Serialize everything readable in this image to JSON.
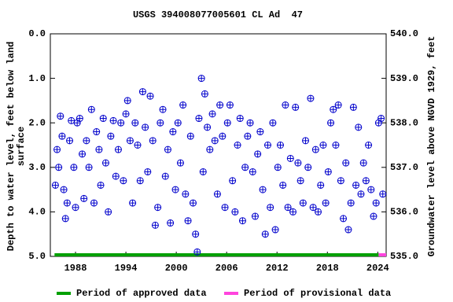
{
  "chart_data": {
    "type": "scatter",
    "title": "USGS 394008077005601 CL Ad  47",
    "ylabel": [
      "Depth to water level, feet below land",
      "surface"
    ],
    "y2label": "Groundwater level above NGVD 1929, feet",
    "xlim": [
      1985,
      2025
    ],
    "xticks": [
      1988,
      1994,
      2000,
      2006,
      2012,
      2018,
      2024
    ],
    "ylim": [
      0,
      5
    ],
    "invert_y": true,
    "yticks": [
      {
        "value": 0,
        "label": "0.0"
      },
      {
        "value": 1,
        "label": "1.0"
      },
      {
        "value": 2,
        "label": "2.0"
      },
      {
        "value": 3,
        "label": "3.0"
      },
      {
        "value": 4,
        "label": "4.0"
      },
      {
        "value": 5,
        "label": "5.0"
      }
    ],
    "y2lim": [
      535,
      540
    ],
    "y2ticks": [
      {
        "value": 535,
        "label": "535.0"
      },
      {
        "value": 536,
        "label": "536.0"
      },
      {
        "value": 537,
        "label": "537.0"
      },
      {
        "value": 538,
        "label": "538.0"
      },
      {
        "value": 539,
        "label": "539.0"
      },
      {
        "value": 540,
        "label": "540.0"
      }
    ],
    "series": [
      {
        "color": "#0000cc",
        "x": [
          1985.6,
          1985.8,
          1986.0,
          1986.2,
          1986.4,
          1986.6,
          1986.8,
          1987.0,
          1987.3,
          1987.5,
          1987.8,
          1988.0,
          1988.2,
          1988.5,
          1988.8,
          1989.0,
          1989.3,
          1989.6,
          1989.9,
          1990.2,
          1990.5,
          1990.8,
          1991.0,
          1991.3,
          1991.6,
          1991.9,
          1992.2,
          1992.5,
          1992.8,
          1993.1,
          1993.4,
          1993.7,
          1994.0,
          1994.2,
          1994.5,
          1994.8,
          1995.1,
          1995.4,
          1995.7,
          1996.0,
          1996.3,
          1996.6,
          1996.9,
          1997.2,
          1997.5,
          1997.8,
          1998.1,
          1998.4,
          1998.7,
          1999.0,
          1999.3,
          1999.6,
          1999.9,
          2000.2,
          2000.5,
          2000.8,
          2001.1,
          2001.4,
          2001.7,
          2002.0,
          2002.3,
          2002.5,
          2002.7,
          2003.0,
          2003.2,
          2003.4,
          2003.7,
          2004.0,
          2004.3,
          2004.6,
          2004.9,
          2005.2,
          2005.5,
          2005.8,
          2006.1,
          2006.4,
          2006.7,
          2007.0,
          2007.3,
          2007.6,
          2007.9,
          2008.2,
          2008.5,
          2008.8,
          2009.1,
          2009.4,
          2009.7,
          2010.0,
          2010.3,
          2010.6,
          2010.9,
          2011.2,
          2011.5,
          2011.8,
          2012.1,
          2012.4,
          2012.7,
          2013.0,
          2013.3,
          2013.6,
          2013.9,
          2014.2,
          2014.5,
          2014.8,
          2015.1,
          2015.4,
          2015.7,
          2016.0,
          2016.3,
          2016.6,
          2016.9,
          2017.2,
          2017.5,
          2017.8,
          2018.1,
          2018.4,
          2018.7,
          2019.0,
          2019.3,
          2019.6,
          2019.9,
          2020.2,
          2020.5,
          2020.8,
          2021.1,
          2021.4,
          2021.7,
          2022.0,
          2022.3,
          2022.6,
          2022.9,
          2023.2,
          2023.5,
          2023.8,
          2024.1,
          2024.4,
          2024.6
        ],
        "values": [
          3.4,
          2.6,
          3.0,
          1.85,
          2.3,
          3.5,
          4.15,
          3.8,
          2.4,
          1.95,
          3.0,
          3.9,
          2.0,
          1.9,
          2.7,
          3.7,
          2.4,
          3.0,
          1.7,
          3.8,
          2.2,
          2.6,
          3.4,
          1.9,
          2.9,
          4.0,
          2.3,
          1.95,
          3.2,
          2.6,
          2.0,
          3.3,
          1.8,
          1.5,
          2.4,
          3.8,
          2.0,
          2.5,
          3.3,
          1.3,
          2.1,
          3.1,
          1.4,
          2.4,
          4.3,
          3.9,
          2.0,
          1.7,
          3.2,
          2.6,
          4.25,
          2.2,
          3.5,
          2.0,
          2.9,
          1.6,
          3.6,
          4.2,
          2.3,
          3.8,
          4.5,
          4.9,
          1.9,
          1.0,
          3.1,
          1.35,
          2.1,
          2.6,
          1.8,
          2.4,
          3.6,
          1.6,
          2.3,
          3.9,
          2.0,
          1.6,
          3.3,
          4.0,
          2.5,
          1.9,
          4.2,
          3.0,
          2.3,
          2.0,
          3.1,
          4.1,
          2.7,
          2.2,
          3.5,
          4.5,
          2.5,
          3.9,
          2.0,
          4.4,
          3.0,
          2.5,
          3.4,
          1.6,
          3.9,
          2.8,
          4.0,
          1.65,
          2.9,
          3.3,
          3.8,
          2.4,
          3.0,
          1.45,
          3.9,
          2.6,
          4.0,
          3.4,
          2.5,
          3.8,
          3.1,
          2.0,
          1.7,
          2.5,
          1.6,
          3.3,
          4.15,
          2.9,
          4.4,
          3.8,
          1.65,
          3.4,
          2.1,
          3.6,
          2.9,
          3.3,
          2.5,
          3.5,
          4.1,
          3.8,
          2.0,
          1.9,
          3.6
        ]
      }
    ],
    "periods": [
      {
        "name": "Period of approved data",
        "color": "#00a000",
        "start": 1985.5,
        "end": 2024.1
      },
      {
        "name": "Period of provisional data",
        "color": "#ff44dd",
        "start": 2024.1,
        "end": 2025
      }
    ]
  }
}
